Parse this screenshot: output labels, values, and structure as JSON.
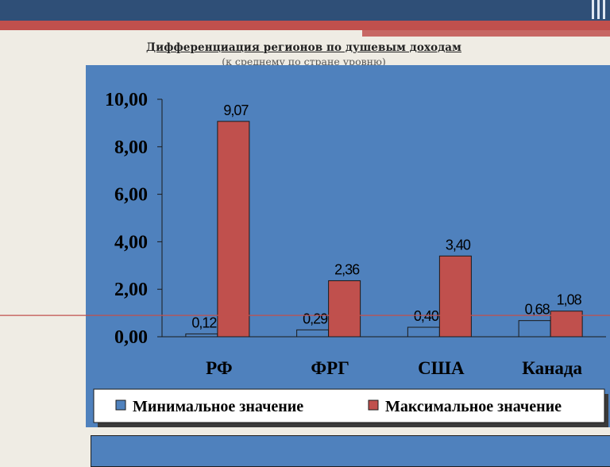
{
  "title": "Дифференциация регионов по душевым доходам",
  "subtitle": "(к среднему по стране уровню)",
  "colors": {
    "panel": "#4f81bd",
    "min_series": "#4f81bd",
    "max_series": "#c0504d",
    "reference_line": "#c0504d",
    "header_bar": "#2f4f77"
  },
  "chart_data": {
    "type": "bar",
    "title": "Дифференциация регионов по душевым доходам",
    "subtitle": "(к среднему по стране уровню)",
    "categories": [
      "РФ",
      "ФРГ",
      "США",
      "Канада"
    ],
    "series": [
      {
        "name": "Минимальное значение",
        "values": [
          0.12,
          0.29,
          0.4,
          0.68
        ],
        "labels": [
          "0,12",
          "0,29",
          "0,40",
          "0,68"
        ]
      },
      {
        "name": "Максимальное значение",
        "values": [
          9.07,
          2.36,
          3.4,
          1.08
        ],
        "labels": [
          "9,07",
          "2,36",
          "3,40",
          "1,08"
        ]
      }
    ],
    "yticks": [
      "0,00",
      "2,00",
      "4,00",
      "6,00",
      "8,00",
      "10,00"
    ],
    "ylim": [
      0,
      10
    ],
    "reference_value": 0.9,
    "xlabel": "",
    "ylabel": "",
    "grid": false,
    "legend": "bottom"
  }
}
